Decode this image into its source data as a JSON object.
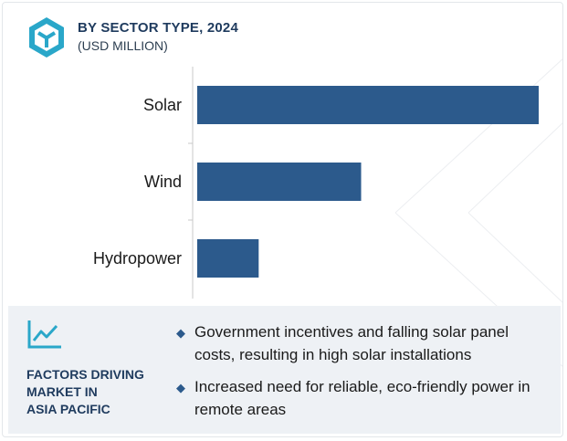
{
  "header": {
    "title": "BY SECTOR TYPE, 2024",
    "subtitle": "(USD MILLION)",
    "logo_icon": "cube-logo-icon"
  },
  "colors": {
    "bar": "#2c5a8c",
    "accent": "#2aa7c9",
    "title": "#1f3b5e",
    "panel_bg": "#eef1f5"
  },
  "chart_data": {
    "type": "bar",
    "orientation": "horizontal",
    "title": "BY SECTOR TYPE, 2024",
    "subtitle": "(USD MILLION)",
    "xlabel": "",
    "ylabel": "",
    "categories": [
      "Solar",
      "Wind",
      "Hydropower"
    ],
    "values": [
      100,
      48,
      18
    ],
    "value_axis_visible": false,
    "grid": false
  },
  "factors": {
    "title_lines": [
      "FACTORS DRIVING",
      "MARKET IN",
      "ASIA PACIFIC"
    ],
    "icon": "line-chart-icon",
    "bullet_icon": "diamond-icon",
    "items": [
      "Government incentives and falling solar panel costs, resulting in high solar installations",
      "Increased need for reliable, eco-friendly power in remote areas"
    ]
  }
}
